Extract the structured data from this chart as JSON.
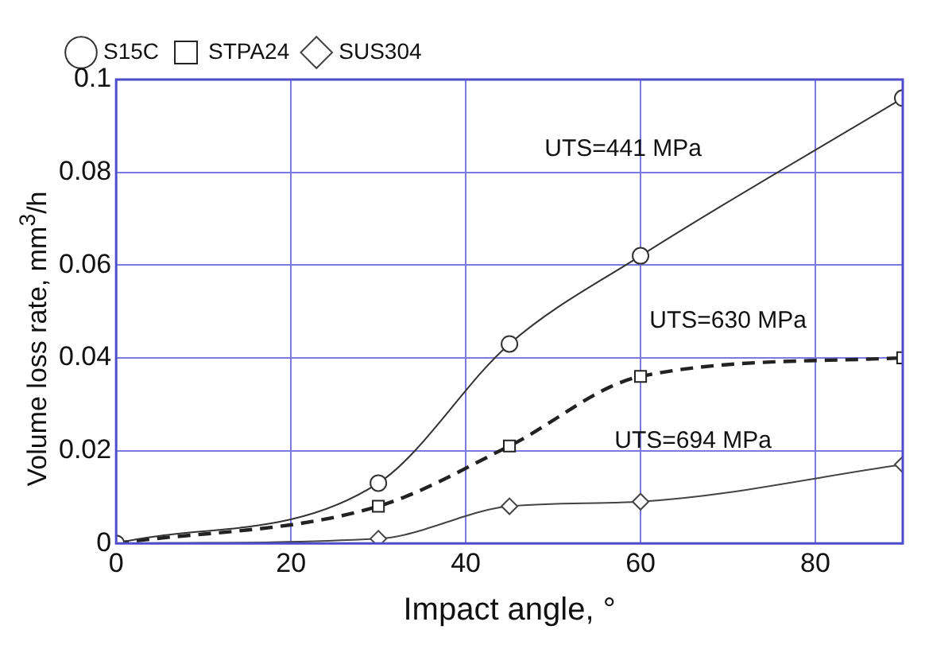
{
  "chart_data": {
    "type": "line",
    "xlabel": "Impact angle, °",
    "ylabel": "Volume loss rate, mm$^{3}$/h",
    "x": [
      0,
      30,
      45,
      60,
      90
    ],
    "series": [
      {
        "name": "S15C",
        "color": "#333333",
        "values": [
          0,
          0.013,
          0.043,
          0.062,
          0.096
        ],
        "marker": "circle",
        "line_style": "solid"
      },
      {
        "name": "STPA24",
        "color": "#222222",
        "values": [
          0,
          0.008,
          0.021,
          0.036,
          0.04
        ],
        "marker": "square",
        "line_style": "dashed"
      },
      {
        "name": "SUS304",
        "color": "#444444",
        "values": [
          0,
          0.001,
          0.008,
          0.009,
          0.017
        ],
        "marker": "diamond",
        "line_style": "solid"
      }
    ],
    "xlim": [
      0,
      90
    ],
    "xticks": [
      0,
      20,
      40,
      60,
      80
    ],
    "ylim": [
      0,
      0.1
    ],
    "yticks": [
      0,
      0.02,
      0.04,
      0.06,
      0.08,
      0.1
    ],
    "grid": true,
    "legend": "top left",
    "annotations": [
      "UTS=441 MPa",
      "UTS=630 MPa",
      "UTS=694 MPa"
    ]
  }
}
